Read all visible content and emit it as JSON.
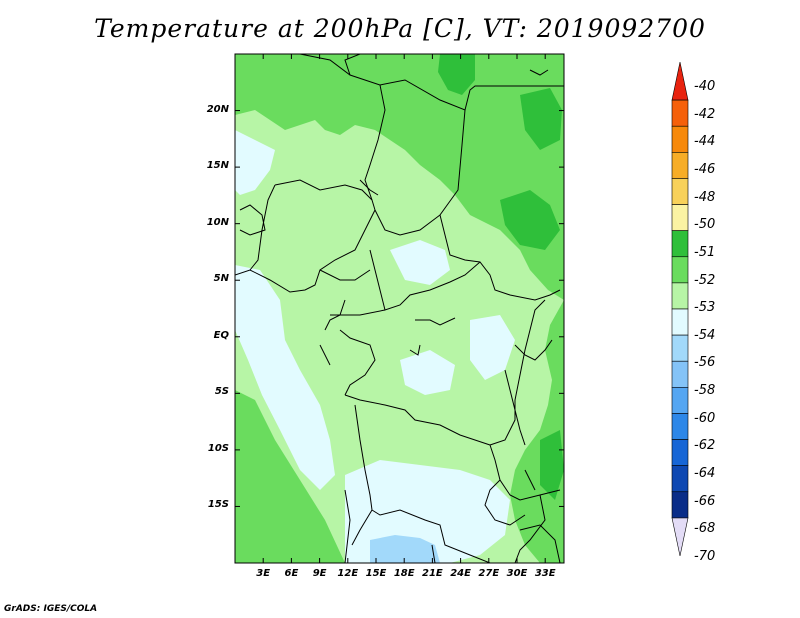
{
  "title": "Temperature at 200hPa [C], VT: 2019092700",
  "credit": "GrADS: IGES/COLA",
  "map": {
    "lon_range": [
      0,
      35
    ],
    "lat_range": [
      -20,
      25
    ],
    "y_ticks": [
      {
        "label": "20N",
        "lat": 20
      },
      {
        "label": "15N",
        "lat": 15
      },
      {
        "label": "10N",
        "lat": 10
      },
      {
        "label": "5N",
        "lat": 5
      },
      {
        "label": "EQ",
        "lat": 0
      },
      {
        "label": "5S",
        "lat": -5
      },
      {
        "label": "10S",
        "lat": -10
      },
      {
        "label": "15S",
        "lat": -15
      }
    ],
    "x_ticks": [
      {
        "label": "3E",
        "lon": 3
      },
      {
        "label": "6E",
        "lon": 6
      },
      {
        "label": "9E",
        "lon": 9
      },
      {
        "label": "12E",
        "lon": 12
      },
      {
        "label": "15E",
        "lon": 15
      },
      {
        "label": "18E",
        "lon": 18
      },
      {
        "label": "21E",
        "lon": 21
      },
      {
        "label": "24E",
        "lon": 24
      },
      {
        "label": "27E",
        "lon": 27
      },
      {
        "label": "30E",
        "lon": 30
      },
      {
        "label": "33E",
        "lon": 33
      }
    ]
  },
  "colorbar": {
    "labels": [
      "-40",
      "-42",
      "-44",
      "-46",
      "-48",
      "-50",
      "-51",
      "-52",
      "-53",
      "-54",
      "-56",
      "-58",
      "-60",
      "-62",
      "-64",
      "-66",
      "-68",
      "-70"
    ],
    "colors": [
      "#e8230f",
      "#f5600a",
      "#f7890b",
      "#f7ad27",
      "#f8d15a",
      "#fbf3a3",
      "#2fbf3a",
      "#6adc5e",
      "#b7f5a6",
      "#e2fbff",
      "#a2d9fa",
      "#84c3f7",
      "#55a6f2",
      "#2d87e8",
      "#1766d6",
      "#0e48b2",
      "#0a2d88",
      "#e3dcf6"
    ]
  },
  "colors": {
    "very_light_green": "#b7f5a6",
    "light_green": "#6adc5e",
    "green": "#2fbf3a",
    "pale_cyan": "#e2fbff",
    "light_blue": "#a2d9fa"
  }
}
